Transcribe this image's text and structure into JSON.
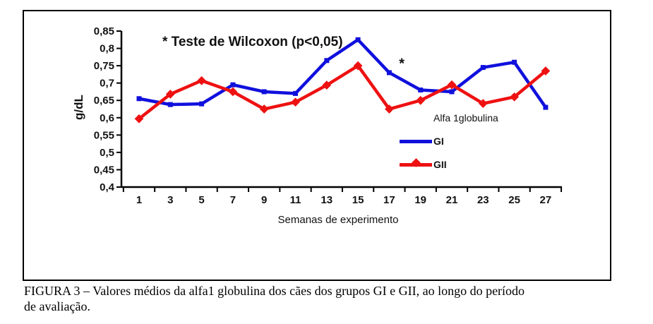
{
  "figure": {
    "annotation": "* Teste de Wilcoxon (p<0,05)",
    "caption": {
      "line1": "FIGURA 3 – Valores médios da alfa1 globulina dos cães dos grupos GI e GII, ao longo do período",
      "line2": "de avaliação."
    }
  },
  "chart_data": {
    "type": "line",
    "title": "",
    "xlabel": "Semanas de experimento",
    "ylabel": "g/dL",
    "x": [
      1,
      3,
      5,
      7,
      9,
      11,
      13,
      15,
      17,
      19,
      21,
      23,
      25,
      27
    ],
    "series": [
      {
        "name": "GI",
        "color": "#1010dd",
        "marker": "square",
        "values": [
          0.655,
          0.638,
          0.64,
          0.695,
          0.675,
          0.67,
          0.765,
          0.825,
          0.73,
          0.68,
          0.675,
          0.745,
          0.76,
          0.63
        ]
      },
      {
        "name": "GII",
        "color": "#ee1111",
        "marker": "diamond",
        "values": [
          0.597,
          0.668,
          0.707,
          0.675,
          0.625,
          0.645,
          0.694,
          0.75,
          0.625,
          0.65,
          0.695,
          0.641,
          0.66,
          0.735
        ]
      }
    ],
    "ylim": [
      0.4,
      0.85
    ],
    "y_tick_step": 0.05,
    "y_tick_labels": [
      "0,4",
      "0,45",
      "0,5",
      "0,55",
      "0,6",
      "0,65",
      "0,7",
      "0,75",
      "0,8",
      "0,85"
    ],
    "legend_title": "Alfa 1globulina",
    "legend_position": "inside-right",
    "grid": false,
    "annotation_star": {
      "x": 17.8,
      "value": 0.755,
      "label": "*"
    },
    "axis_color": "#000000",
    "tick_label_color": "#111111"
  }
}
